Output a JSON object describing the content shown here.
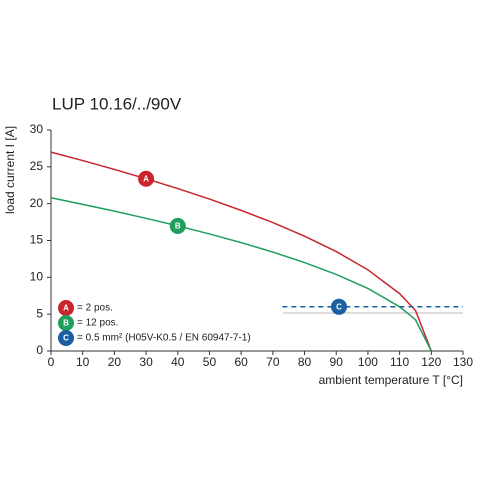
{
  "chart_data": {
    "type": "line",
    "title": "LUP 10.16/../90V",
    "x_label": "ambient temperature T [°C]",
    "y_label": "load current I [A]",
    "x": [
      0,
      10,
      20,
      30,
      40,
      50,
      60,
      70,
      80,
      90,
      100,
      110,
      115,
      120
    ],
    "series": [
      {
        "name": "A",
        "label": "= 2 pos.",
        "color": "#c8262c",
        "values": [
          27,
          25.85,
          24.65,
          23.38,
          22.05,
          20.62,
          19.09,
          17.43,
          15.59,
          13.5,
          11.02,
          7.79,
          5.51,
          0
        ]
      },
      {
        "name": "B",
        "label": "= 12 pos.",
        "color": "#1f9e5e",
        "values": [
          20.8,
          19.91,
          18.99,
          18.01,
          16.98,
          15.89,
          14.71,
          13.43,
          12.01,
          10.4,
          8.49,
          6.0,
          4.25,
          0
        ]
      },
      {
        "name": "C",
        "label": "= 0.5 mm² (H05V-K0.5 / EN 60947-7-1)",
        "color": "#1a5fa0",
        "dashed": true,
        "x": [
          73,
          130
        ],
        "values": [
          6,
          6
        ]
      }
    ],
    "xlim": [
      0,
      130
    ],
    "ylim": [
      0,
      30
    ],
    "xticks": [
      0,
      10,
      20,
      30,
      40,
      50,
      60,
      70,
      80,
      90,
      100,
      110,
      120,
      130
    ],
    "yticks": [
      0,
      5,
      10,
      15,
      20,
      25,
      30
    ],
    "grid": false
  }
}
